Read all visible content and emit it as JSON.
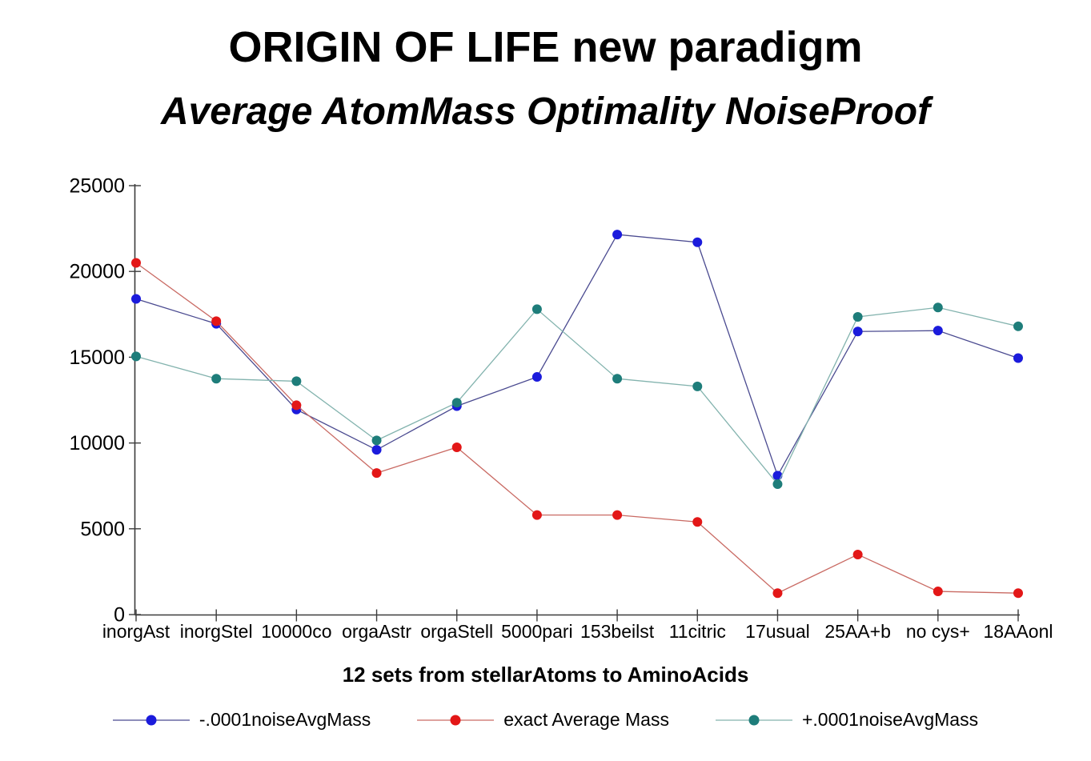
{
  "chart_data": {
    "type": "line",
    "title": "ORIGIN OF LIFE new paradigm",
    "subtitle": "Average AtomMass Optimality NoiseProof",
    "xlabel": "12 sets from stellarAtoms to AminoAcids",
    "ylabel": "",
    "ylim": [
      0,
      25000
    ],
    "yticks": [
      0,
      5000,
      10000,
      15000,
      20000,
      25000
    ],
    "grid": false,
    "legend_position": "bottom",
    "categories": [
      "inorgAst",
      "inorgStel",
      "10000co",
      "orgaAstr",
      "orgaStell",
      "5000pari",
      "153beilst",
      "11citric",
      "17usual",
      "25AA+b",
      "no cys+",
      "18AAonl"
    ],
    "series": [
      {
        "name": "-.0001noiseAvgMass",
        "marker_color": "#1b1bdc",
        "line_color": "#4a4a90",
        "values": [
          18400,
          16950,
          11950,
          9600,
          12150,
          13850,
          22150,
          21700,
          8100,
          16500,
          16550,
          14950
        ]
      },
      {
        "name": "exact Average Mass",
        "marker_color": "#e31717",
        "line_color": "#c96a63",
        "values": [
          20500,
          17100,
          12200,
          8250,
          9750,
          5800,
          5800,
          5400,
          1250,
          3500,
          1350,
          1250
        ]
      },
      {
        "name": "+.0001noiseAvgMass",
        "marker_color": "#1e7d7a",
        "line_color": "#83b3ae",
        "values": [
          15050,
          13750,
          13600,
          10150,
          12350,
          17800,
          13750,
          13300,
          7600,
          17350,
          17900,
          16800
        ]
      }
    ],
    "axis_color": "#3c3c3c",
    "text_color": "#000000"
  }
}
